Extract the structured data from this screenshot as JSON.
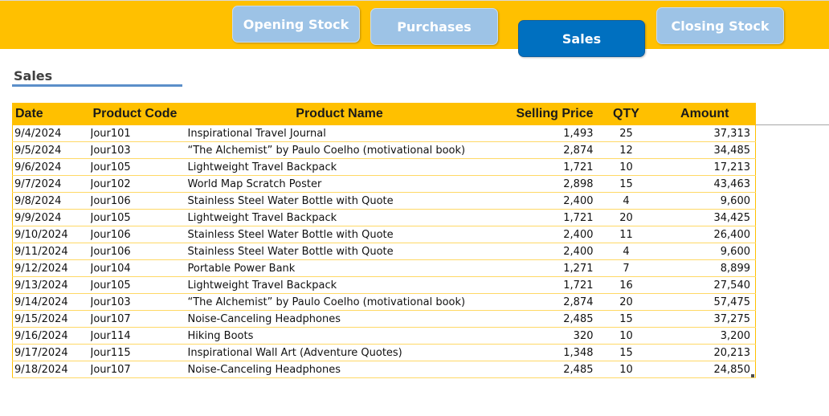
{
  "tabs": [
    {
      "label": "Opening Stock"
    },
    {
      "label": "Purchases"
    },
    {
      "label": "Sales"
    },
    {
      "label": "Closing Stock"
    }
  ],
  "section": {
    "title": "Sales"
  },
  "table": {
    "headers": {
      "date": "Date",
      "code": "Product Code",
      "name": "Product Name",
      "price": "Selling Price",
      "qty": "QTY",
      "amount": "Amount"
    },
    "rows": [
      {
        "date": "9/4/2024",
        "code": "Jour101",
        "name": "Inspirational Travel Journal",
        "price": "1,493",
        "qty": "25",
        "amount": "37,313"
      },
      {
        "date": "9/5/2024",
        "code": "Jour103",
        "name": "“The Alchemist” by Paulo Coelho (motivational book)",
        "price": "2,874",
        "qty": "12",
        "amount": "34,485"
      },
      {
        "date": "9/6/2024",
        "code": "Jour105",
        "name": "Lightweight Travel Backpack",
        "price": "1,721",
        "qty": "10",
        "amount": "17,213"
      },
      {
        "date": "9/7/2024",
        "code": "Jour102",
        "name": "World Map Scratch Poster",
        "price": "2,898",
        "qty": "15",
        "amount": "43,463"
      },
      {
        "date": "9/8/2024",
        "code": "Jour106",
        "name": "Stainless Steel Water Bottle with Quote",
        "price": "2,400",
        "qty": "4",
        "amount": "9,600"
      },
      {
        "date": "9/9/2024",
        "code": "Jour105",
        "name": "Lightweight Travel Backpack",
        "price": "1,721",
        "qty": "20",
        "amount": "34,425"
      },
      {
        "date": "9/10/2024",
        "code": "Jour106",
        "name": "Stainless Steel Water Bottle with Quote",
        "price": "2,400",
        "qty": "11",
        "amount": "26,400"
      },
      {
        "date": "9/11/2024",
        "code": "Jour106",
        "name": "Stainless Steel Water Bottle with Quote",
        "price": "2,400",
        "qty": "4",
        "amount": "9,600"
      },
      {
        "date": "9/12/2024",
        "code": "Jour104",
        "name": "Portable Power Bank",
        "price": "1,271",
        "qty": "7",
        "amount": "8,899"
      },
      {
        "date": "9/13/2024",
        "code": "Jour105",
        "name": "Lightweight Travel Backpack",
        "price": "1,721",
        "qty": "16",
        "amount": "27,540"
      },
      {
        "date": "9/14/2024",
        "code": "Jour103",
        "name": "“The Alchemist” by Paulo Coelho (motivational book)",
        "price": "2,874",
        "qty": "20",
        "amount": "57,475"
      },
      {
        "date": "9/15/2024",
        "code": "Jour107",
        "name": "Noise-Canceling Headphones",
        "price": "2,485",
        "qty": "15",
        "amount": "37,275"
      },
      {
        "date": "9/16/2024",
        "code": "Jour114",
        "name": "Hiking Boots",
        "price": "320",
        "qty": "10",
        "amount": "3,200"
      },
      {
        "date": "9/17/2024",
        "code": "Jour115",
        "name": "Inspirational Wall Art (Adventure Quotes)",
        "price": "1,348",
        "qty": "15",
        "amount": "20,213"
      },
      {
        "date": "9/18/2024",
        "code": "Jour107",
        "name": "Noise-Canceling Headphones",
        "price": "2,485",
        "qty": "10",
        "amount": "24,850"
      }
    ]
  },
  "colors": {
    "header_band": "#FFC000",
    "tab_inactive": "#9DC3E6",
    "tab_active": "#0070C0",
    "row_border": "#FFD966",
    "title_underline": "#5B8FC9"
  }
}
